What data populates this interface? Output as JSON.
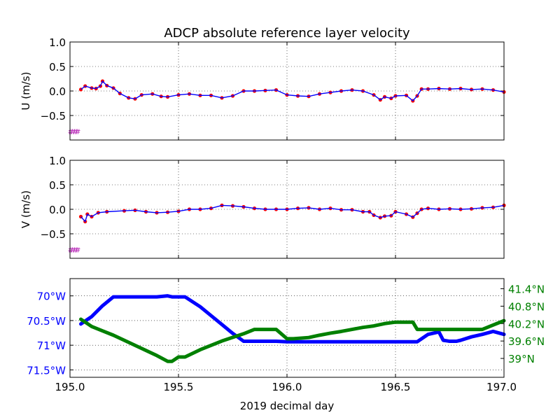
{
  "figure": {
    "title": "ADCP absolute reference layer velocity",
    "xlabel": "2019 decimal day"
  },
  "colors": {
    "series_line": "#0000ff",
    "series_points": "#ff0000",
    "marker": "#bf3fbf",
    "lon": "#0000ff",
    "lat": "#008000",
    "grid": "#000000"
  },
  "chart_data": [
    {
      "type": "line",
      "id": "u",
      "ylabel": "U (m/s)",
      "xlim": [
        195.0,
        197.0
      ],
      "ylim": [
        -1.0,
        1.0
      ],
      "yticks": [
        -0.5,
        0.0,
        0.5,
        1.0
      ],
      "ytick_labels": [
        "−0.5",
        "0.0",
        "0.5",
        "1.0"
      ],
      "xticks": [
        195.0,
        195.5,
        196.0,
        196.5,
        197.0
      ],
      "grid": true,
      "series": [
        {
          "style": "line+points",
          "x": [
            195.05,
            195.07,
            195.1,
            195.12,
            195.14,
            195.15,
            195.17,
            195.2,
            195.23,
            195.27,
            195.3,
            195.33,
            195.38,
            195.42,
            195.45,
            195.5,
            195.55,
            195.6,
            195.65,
            195.7,
            195.75,
            195.8,
            195.85,
            195.9,
            195.95,
            196.0,
            196.05,
            196.1,
            196.15,
            196.2,
            196.25,
            196.3,
            196.35,
            196.4,
            196.43,
            196.45,
            196.48,
            196.5,
            196.55,
            196.58,
            196.6,
            196.62,
            196.65,
            196.7,
            196.75,
            196.8,
            196.85,
            196.9,
            196.95,
            197.0
          ],
          "y": [
            0.03,
            0.1,
            0.06,
            0.05,
            0.1,
            0.2,
            0.11,
            0.06,
            -0.05,
            -0.14,
            -0.16,
            -0.08,
            -0.06,
            -0.11,
            -0.12,
            -0.08,
            -0.06,
            -0.09,
            -0.09,
            -0.14,
            -0.1,
            0.0,
            0.0,
            0.01,
            0.02,
            -0.08,
            -0.1,
            -0.11,
            -0.06,
            -0.03,
            0.0,
            0.02,
            0.0,
            -0.08,
            -0.18,
            -0.12,
            -0.15,
            -0.1,
            -0.09,
            -0.2,
            -0.1,
            0.04,
            0.04,
            0.05,
            0.04,
            0.05,
            0.03,
            0.04,
            0.02,
            -0.02
          ]
        }
      ],
      "marker": {
        "x": [
          195.0,
          195.04
        ],
        "y": -0.82,
        "label": "#"
      }
    },
    {
      "type": "line",
      "id": "v",
      "ylabel": "V (m/s)",
      "xlim": [
        195.0,
        197.0
      ],
      "ylim": [
        -1.0,
        1.0
      ],
      "yticks": [
        -0.5,
        0.0,
        0.5,
        1.0
      ],
      "ytick_labels": [
        "−0.5",
        "0.0",
        "0.5",
        "1.0"
      ],
      "xticks": [
        195.0,
        195.5,
        196.0,
        196.5,
        197.0
      ],
      "grid": true,
      "series": [
        {
          "style": "line+points",
          "x": [
            195.05,
            195.07,
            195.08,
            195.1,
            195.13,
            195.17,
            195.25,
            195.3,
            195.35,
            195.4,
            195.45,
            195.5,
            195.55,
            195.6,
            195.65,
            195.7,
            195.75,
            195.8,
            195.85,
            195.9,
            195.95,
            196.0,
            196.05,
            196.1,
            196.15,
            196.2,
            196.25,
            196.3,
            196.35,
            196.38,
            196.4,
            196.43,
            196.45,
            196.48,
            196.5,
            196.55,
            196.58,
            196.6,
            196.62,
            196.65,
            196.7,
            196.75,
            196.8,
            196.85,
            196.9,
            196.95,
            197.0
          ],
          "y": [
            -0.15,
            -0.25,
            -0.1,
            -0.15,
            -0.07,
            -0.05,
            -0.03,
            -0.02,
            -0.05,
            -0.07,
            -0.06,
            -0.04,
            0.0,
            0.0,
            0.02,
            0.08,
            0.07,
            0.05,
            0.02,
            0.0,
            0.0,
            0.0,
            0.02,
            0.03,
            0.0,
            0.02,
            -0.01,
            -0.01,
            -0.05,
            -0.05,
            -0.12,
            -0.17,
            -0.14,
            -0.13,
            -0.05,
            -0.1,
            -0.16,
            -0.08,
            0.0,
            0.02,
            0.0,
            0.01,
            0.0,
            0.01,
            0.03,
            0.04,
            0.08
          ]
        }
      ],
      "marker": {
        "x": [
          195.0,
          195.04
        ],
        "y": -0.82,
        "label": "#"
      }
    },
    {
      "type": "line",
      "id": "position",
      "xlim": [
        195.0,
        197.0
      ],
      "xticks": [
        195.0,
        195.5,
        196.0,
        196.5,
        197.0
      ],
      "xtick_labels": [
        "195.0",
        "195.5",
        "196.0",
        "196.5",
        "197.0"
      ],
      "grid": true,
      "left_axis": {
        "name": "longitude",
        "ylim": [
          71.65,
          69.65
        ],
        "yticks": [
          70.0,
          70.5,
          71.0,
          71.5
        ],
        "ytick_labels": [
          "70°W",
          "70.5°W",
          "71°W",
          "71.5°W"
        ]
      },
      "right_axis": {
        "name": "latitude",
        "ylim": [
          38.35,
          41.75
        ],
        "yticks": [
          39.0,
          39.6,
          40.2,
          40.8,
          41.4
        ],
        "ytick_labels": [
          "39°N",
          "39.6°N",
          "40.2°N",
          "40.8°N",
          "41.4°N"
        ]
      },
      "series": [
        {
          "axis": "left",
          "x": [
            195.05,
            195.1,
            195.15,
            195.2,
            195.3,
            195.4,
            195.45,
            195.47,
            195.53,
            195.6,
            195.65,
            195.7,
            195.75,
            195.8,
            195.85,
            195.9,
            195.95,
            196.0,
            196.1,
            196.2,
            196.3,
            196.4,
            196.5,
            196.55,
            196.6,
            196.65,
            196.7,
            196.72,
            196.75,
            196.78,
            196.8,
            196.85,
            196.9,
            196.95,
            197.0
          ],
          "y": [
            70.57,
            70.42,
            70.2,
            70.02,
            70.02,
            70.02,
            70.0,
            70.02,
            70.02,
            70.22,
            70.4,
            70.58,
            70.76,
            70.92,
            70.92,
            70.92,
            70.92,
            70.93,
            70.93,
            70.93,
            70.93,
            70.93,
            70.93,
            70.93,
            70.93,
            70.78,
            70.73,
            70.9,
            70.92,
            70.92,
            70.9,
            70.83,
            70.78,
            70.72,
            70.78
          ]
        },
        {
          "axis": "right",
          "x": [
            195.05,
            195.1,
            195.15,
            195.2,
            195.3,
            195.4,
            195.45,
            195.47,
            195.5,
            195.53,
            195.6,
            195.7,
            195.8,
            195.85,
            195.9,
            195.95,
            196.0,
            196.03,
            196.1,
            196.15,
            196.2,
            196.25,
            196.3,
            196.35,
            196.4,
            196.45,
            196.5,
            196.55,
            196.58,
            196.6,
            196.65,
            196.7,
            196.8,
            196.85,
            196.9,
            196.95,
            197.0
          ],
          "y": [
            40.35,
            40.1,
            39.95,
            39.8,
            39.45,
            39.1,
            38.9,
            38.9,
            39.05,
            39.05,
            39.3,
            39.6,
            39.85,
            40.0,
            40.0,
            40.0,
            39.68,
            39.68,
            39.72,
            39.8,
            39.87,
            39.93,
            40.0,
            40.07,
            40.12,
            40.2,
            40.25,
            40.25,
            40.25,
            40.0,
            40.0,
            40.0,
            40.0,
            40.0,
            40.0,
            40.15,
            40.3
          ]
        }
      ]
    }
  ]
}
